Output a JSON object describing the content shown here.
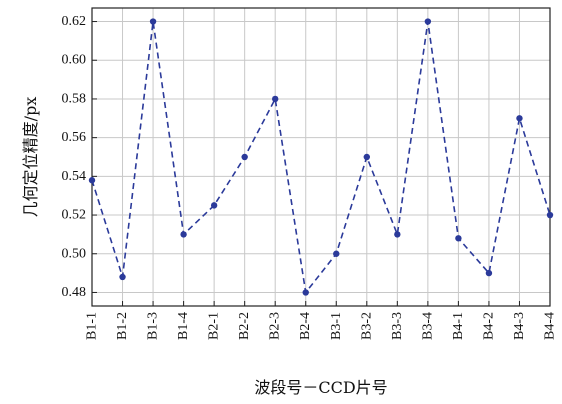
{
  "chart_data": {
    "type": "line",
    "categories": [
      "B1-1",
      "B1-2",
      "B1-3",
      "B1-4",
      "B2-1",
      "B2-2",
      "B2-3",
      "B2-4",
      "B3-1",
      "B3-2",
      "B3-3",
      "B3-4",
      "B4-1",
      "B4-2",
      "B4-3",
      "B4-4"
    ],
    "series": [
      {
        "values": [
          0.538,
          0.488,
          0.62,
          0.51,
          0.525,
          0.55,
          0.58,
          0.48,
          0.5,
          0.55,
          0.51,
          0.62,
          0.508,
          0.49,
          0.57,
          0.52
        ]
      }
    ],
    "xlabel": "波段号－CCD片号",
    "ylabel": "几何定位精度/px",
    "ylim": [
      0.473,
      0.627
    ],
    "yticks": [
      "0.48",
      "0.50",
      "0.52",
      "0.54",
      "0.56",
      "0.58",
      "0.60",
      "0.62"
    ],
    "grid": true,
    "color": "#2b3a9a"
  }
}
